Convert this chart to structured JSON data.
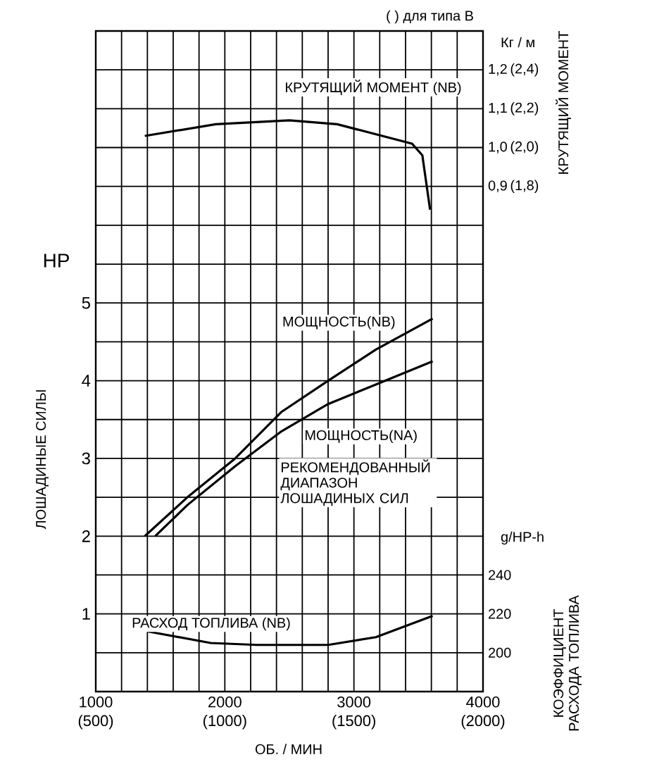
{
  "chart_data": {
    "type": "line",
    "xlabel": "ОБ. / МИН",
    "ylabel": "ЛОШАДИНЫЕ СИЛЫ",
    "y2label": "КРУТЯЩИЙ МОМЕНТ",
    "y3label": "КОЭФФИЦИЕНТ РАСХОДА ТОПЛИВА",
    "annotations": [
      "( ) для типа В",
      "Кг / м",
      "g/HP-h",
      "HP",
      "РЕКОМЕНДОВАННЫЙ ДИАПАЗОН ЛОШАДИНЫХ СИЛ",
      "(2,4)",
      "(2,2)",
      "(2,0)",
      "(1,8)"
    ],
    "xlim": [
      1000,
      4000
    ],
    "xticks": [
      1000,
      {
        "value": 1200,
        "label": null
      },
      {
        "value": 1400,
        "label": null
      },
      {
        "value": 1600,
        "label": null
      },
      {
        "value": 1800,
        "label": null
      },
      2000,
      {
        "value": 2200,
        "label": null
      },
      {
        "value": 2400,
        "label": null
      },
      {
        "value": 2600,
        "label": null
      },
      {
        "value": 2800,
        "label": null
      },
      3000,
      {
        "value": 3200,
        "label": null
      },
      {
        "value": 3400,
        "label": null
      },
      {
        "value": 3600,
        "label": null
      },
      {
        "value": 3800,
        "label": null
      },
      4000
    ],
    "x2lim": [
      500,
      2000
    ],
    "x2ticks": [
      {
        "value": 500,
        "label": "(500)"
      },
      {
        "value": 1000,
        "label": "(1000)"
      },
      {
        "value": 1500,
        "label": "(1500)"
      },
      {
        "value": 2000,
        "label": "(2000)"
      }
    ],
    "ylim": [
      0,
      8.5
    ],
    "yticks": [
      {
        "value": 0.5,
        "label": null
      },
      1,
      {
        "value": 1.5,
        "label": null
      },
      2,
      {
        "value": 2.5,
        "label": null
      },
      3,
      {
        "value": 3.5,
        "label": null
      },
      4,
      {
        "value": 4.5,
        "label": null
      },
      5,
      {
        "value": 5.5,
        "label": null
      },
      {
        "value": 6,
        "label": null
      },
      {
        "value": 6.5,
        "label": null
      },
      {
        "value": 7,
        "label": null
      },
      {
        "value": 7.5,
        "label": null
      },
      {
        "value": 8,
        "label": null
      }
    ],
    "y2lim": [
      -0.4,
      1.3
    ],
    "y2ticks": [
      {
        "value": 0.9,
        "label": "0,9"
      },
      {
        "value": 1.0,
        "label": "1,0"
      },
      {
        "value": 1.1,
        "label": "1,1"
      },
      {
        "value": 1.2,
        "label": "1,2"
      }
    ],
    "y3lim": [
      180,
      520
    ],
    "y3ticks": [
      200,
      220,
      240
    ],
    "grid": true,
    "legend": false,
    "marker": "none",
    "line_style": "solid",
    "series": [
      {
        "name": "КРУТЯЩИЙ МОМЕНТ (NB)",
        "color": "#000000",
        "axis": "y2",
        "x": [
          1380,
          1930,
          2500,
          2870,
          3450,
          3530,
          3590
        ],
        "values": [
          1.03,
          1.06,
          1.07,
          1.06,
          1.01,
          0.98,
          0.84
        ]
      },
      {
        "name": "МОЩНОСТЬ(NB)",
        "color": "#000000",
        "axis": "y",
        "x": [
          1380,
          1710,
          2080,
          2440,
          2800,
          3170,
          3610
        ],
        "values": [
          2.0,
          2.5,
          3.0,
          3.6,
          4.0,
          4.4,
          4.8
        ]
      },
      {
        "name": "МОЩНОСТЬ(NA)",
        "color": "#000000",
        "axis": "y",
        "x": [
          1460,
          1710,
          2080,
          2440,
          2800,
          3170,
          3610
        ],
        "values": [
          2.0,
          2.4,
          2.9,
          3.35,
          3.7,
          3.95,
          4.25
        ]
      },
      {
        "name": "РАСХОД ТОПЛИВА (NB)",
        "color": "#000000",
        "axis": "y3",
        "x": [
          1400,
          1890,
          2250,
          2800,
          3170,
          3610
        ],
        "values": [
          211,
          205,
          204,
          204,
          208,
          219
        ]
      }
    ]
  }
}
